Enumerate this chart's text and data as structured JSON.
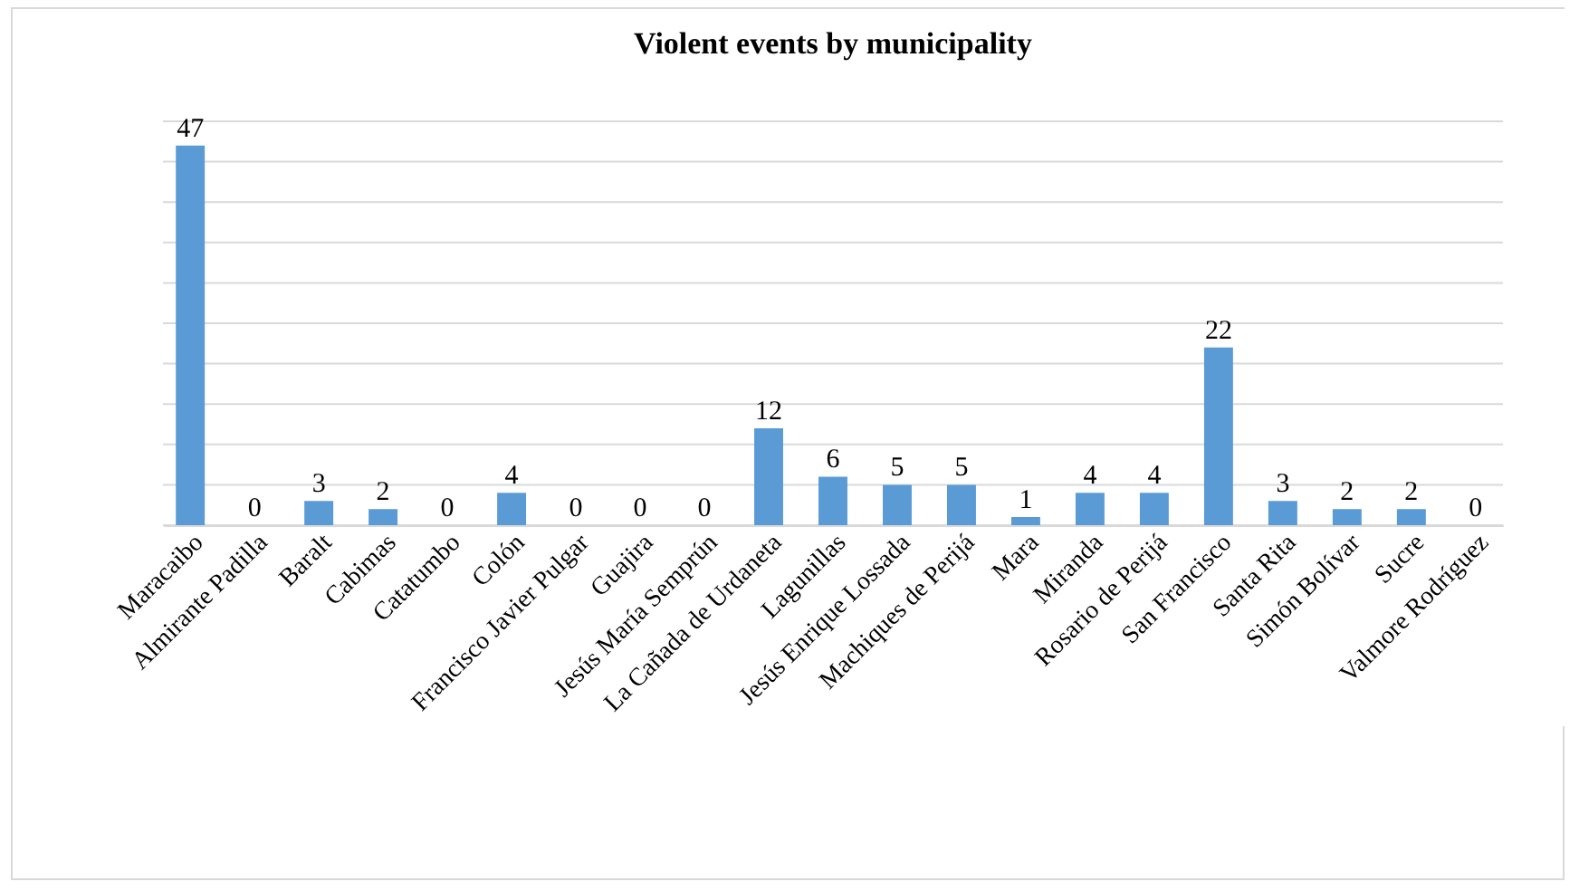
{
  "chart_data": {
    "type": "bar",
    "title": "Violent events by municipality",
    "categories": [
      "Maracaibo",
      "Almirante Padilla",
      "Baralt",
      "Cabimas",
      "Catatumbo",
      "Colón",
      "Francisco Javier Pulgar",
      "Guajira",
      "Jesús María Semprún",
      "La Cañada de Urdaneta",
      "Lagunillas",
      "Jesús Enrique Lossada",
      "Machiques de Perijá",
      "Mara",
      "Miranda",
      "Rosario de Perijá",
      "San Francisco",
      "Santa Rita",
      "Simón Bolívar",
      "Sucre",
      "Valmore Rodríguez"
    ],
    "values": [
      47,
      0,
      3,
      2,
      0,
      4,
      0,
      0,
      0,
      12,
      6,
      5,
      5,
      1,
      4,
      4,
      22,
      3,
      2,
      2,
      0
    ],
    "color": "#5b9bd5",
    "ylim": [
      0,
      50
    ],
    "yticks": [
      {
        "value": 0,
        "label": null
      },
      {
        "value": 5,
        "label": null
      },
      {
        "value": 10,
        "label": null
      },
      {
        "value": 15,
        "label": null
      },
      {
        "value": 20,
        "label": null
      },
      {
        "value": 25,
        "label": null
      },
      {
        "value": 30,
        "label": null
      },
      {
        "value": 35,
        "label": null
      },
      {
        "value": 40,
        "label": null
      },
      {
        "value": 45,
        "label": null
      },
      {
        "value": 50,
        "label": null
      }
    ],
    "grid": "y",
    "tick_labels": "x",
    "data_labels": true
  }
}
